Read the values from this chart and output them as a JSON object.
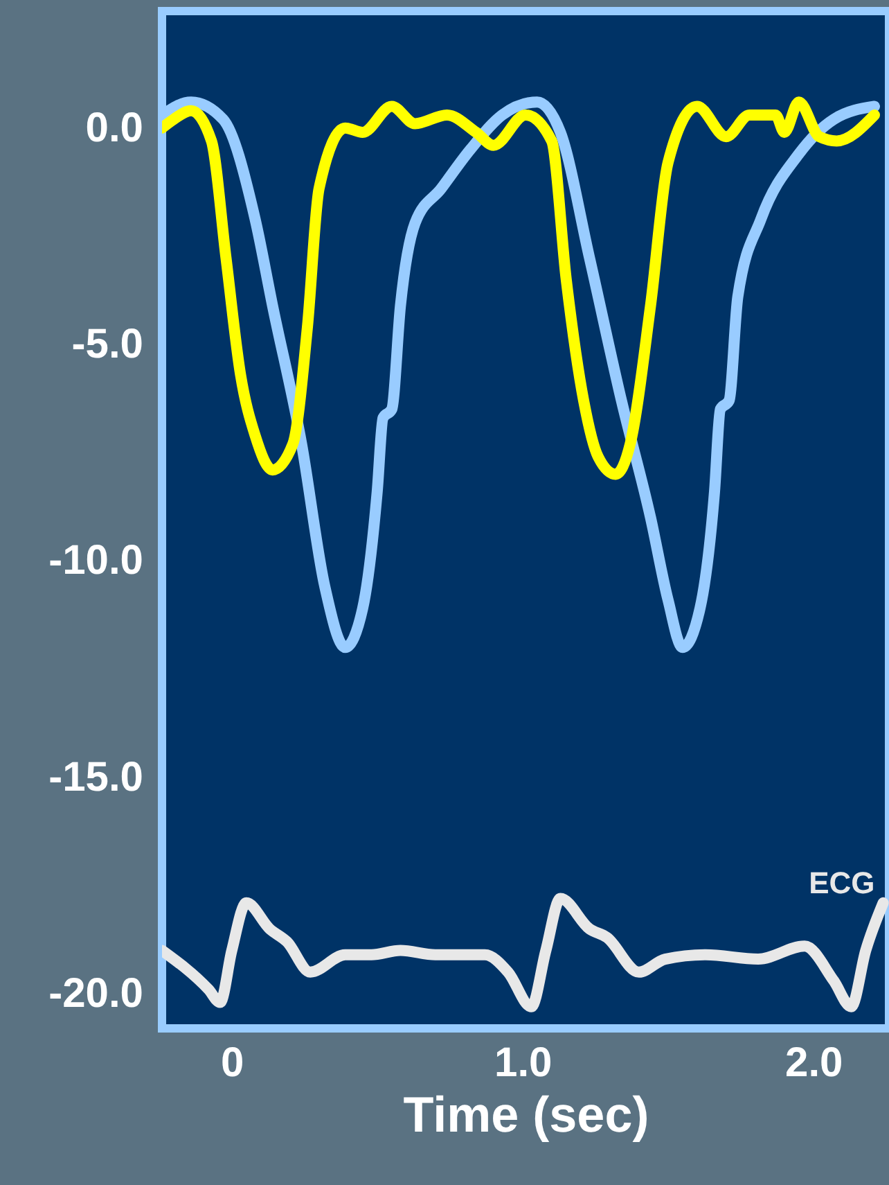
{
  "chart_data": {
    "type": "line",
    "xlabel": "Time (sec)",
    "xlim": [
      -0.24,
      2.26
    ],
    "ylim": [
      -20.8,
      2.7
    ],
    "xticks": [
      0,
      {
        "value": 1,
        "label": "1.0"
      },
      {
        "value": 2,
        "label": "2.0"
      }
    ],
    "yticks": [
      {
        "value": 0,
        "label": "0.0"
      },
      {
        "value": -5,
        "label": "-5.0"
      },
      {
        "value": -10,
        "label": "-10.0"
      },
      {
        "value": -15,
        "label": "-15.0"
      },
      {
        "value": -20,
        "label": "-20.0"
      }
    ],
    "grid": false,
    "marker": "none",
    "line_style": "solid",
    "series": [
      {
        "color": "#99ccff",
        "x": [
          -0.24,
          -0.14,
          -0.03,
          0.08,
          0.14,
          0.24,
          0.32,
          0.39,
          0.45,
          0.5,
          0.52,
          0.55,
          0.58,
          0.63,
          0.72,
          0.82,
          0.93,
          1.05,
          1.13,
          1.23,
          1.34,
          1.44,
          1.5,
          1.55,
          1.61,
          1.66,
          1.68,
          1.71,
          1.74,
          1.82,
          1.95,
          2.07,
          2.21
        ],
        "values": [
          0.3,
          0.6,
          0.2,
          -2.1,
          -4.1,
          -7.3,
          -10.6,
          -12,
          -11.1,
          -8.4,
          -6.7,
          -6.5,
          -4.1,
          -2.2,
          -1.4,
          -0.5,
          0.3,
          0.6,
          -0.1,
          -3,
          -6.3,
          -9,
          -10.9,
          -12,
          -11.1,
          -8.4,
          -6.5,
          -6.3,
          -3.9,
          -2.1,
          -0.6,
          0.2,
          0.5
        ]
      },
      {
        "color": "#ffff00",
        "x": [
          -0.24,
          -0.2,
          -0.14,
          -0.07,
          -0.02,
          0.03,
          0.08,
          0.14,
          0.21,
          0.26,
          0.3,
          0.39,
          0.45,
          0.55,
          0.63,
          0.74,
          0.84,
          0.9,
          1.01,
          1.1,
          1.15,
          1.21,
          1.26,
          1.32,
          1.37,
          1.44,
          1.5,
          1.6,
          1.7,
          1.78,
          1.87,
          1.9,
          1.95,
          2.02,
          2.08,
          2.21
        ],
        "values": [
          0,
          0.2,
          0.4,
          -0.3,
          -3,
          -5.7,
          -7.1,
          -7.9,
          -7.3,
          -4.6,
          -1.4,
          0,
          -0.1,
          0.5,
          0.1,
          0.3,
          -0.1,
          -0.4,
          0.3,
          -0.3,
          -3.5,
          -6.3,
          -7.6,
          -8,
          -7.3,
          -4.1,
          -0.8,
          0.5,
          -0.2,
          0.3,
          0.3,
          -0.1,
          0.6,
          -0.2,
          -0.3,
          0.3
        ]
      },
      {
        "name": "ECG",
        "color": "#e8e8e8",
        "x": [
          -0.24,
          -0.08,
          -0.04,
          0,
          0.05,
          0.13,
          0.19,
          0.27,
          0.39,
          0.48,
          0.58,
          0.7,
          0.87,
          0.95,
          1.03,
          1.08,
          1.13,
          1.23,
          1.29,
          1.4,
          1.49,
          1.63,
          1.81,
          1.97,
          2.07,
          2.13,
          2.18,
          2.24
        ],
        "values": [
          -19,
          -19.9,
          -20.2,
          -19,
          -17.9,
          -18.5,
          -18.8,
          -19.5,
          -19.1,
          -19.1,
          -19,
          -19.1,
          -19.1,
          -19.5,
          -20.3,
          -19,
          -17.8,
          -18.5,
          -18.7,
          -19.5,
          -19.2,
          -19.1,
          -19.2,
          -18.9,
          -19.7,
          -20.3,
          -19,
          -17.9
        ]
      }
    ]
  }
}
